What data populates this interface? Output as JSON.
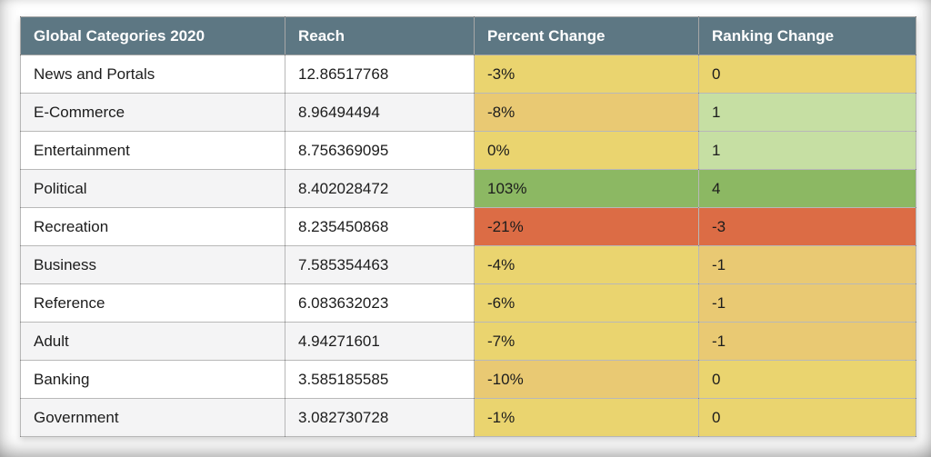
{
  "colors": {
    "header_bg": "#5D7783",
    "header_text": "#FFFFFF",
    "row_alt_bg": "#F4F4F5",
    "yellow": "#EAD46F",
    "orange_yellow": "#E9C973",
    "light_green": "#C6DFA3",
    "green": "#8CB863",
    "red_orange": "#DC6C45"
  },
  "table": {
    "headers": [
      "Global Categories 2020",
      "Reach",
      "Percent Change",
      "Ranking Change"
    ],
    "rows": [
      {
        "category": "News and Portals",
        "reach": "12.86517768",
        "percent_change": "-3%",
        "percent_bg": "#EAD46F",
        "ranking_change": "0",
        "ranking_bg": "#EAD46F"
      },
      {
        "category": "E-Commerce",
        "reach": "8.96494494",
        "percent_change": "-8%",
        "percent_bg": "#E9C973",
        "ranking_change": "1",
        "ranking_bg": "#C6DFA3"
      },
      {
        "category": "Entertainment",
        "reach": "8.756369095",
        "percent_change": "0%",
        "percent_bg": "#EAD46F",
        "ranking_change": "1",
        "ranking_bg": "#C6DFA3"
      },
      {
        "category": "Political",
        "reach": "8.402028472",
        "percent_change": "103%",
        "percent_bg": "#8CB863",
        "ranking_change": "4",
        "ranking_bg": "#8CB863"
      },
      {
        "category": "Recreation",
        "reach": "8.235450868",
        "percent_change": "-21%",
        "percent_bg": "#DC6C45",
        "ranking_change": "-3",
        "ranking_bg": "#DC6C45"
      },
      {
        "category": "Business",
        "reach": "7.585354463",
        "percent_change": "-4%",
        "percent_bg": "#EAD46F",
        "ranking_change": "-1",
        "ranking_bg": "#E9C973"
      },
      {
        "category": "Reference",
        "reach": "6.083632023",
        "percent_change": "-6%",
        "percent_bg": "#EAD46F",
        "ranking_change": "-1",
        "ranking_bg": "#E9C973"
      },
      {
        "category": "Adult",
        "reach": "4.94271601",
        "percent_change": "-7%",
        "percent_bg": "#EAD46F",
        "ranking_change": "-1",
        "ranking_bg": "#E9C973"
      },
      {
        "category": "Banking",
        "reach": "3.585185585",
        "percent_change": "-10%",
        "percent_bg": "#E9C973",
        "ranking_change": "0",
        "ranking_bg": "#EAD46F"
      },
      {
        "category": "Government",
        "reach": "3.082730728",
        "percent_change": "-1%",
        "percent_bg": "#EAD46F",
        "ranking_change": "0",
        "ranking_bg": "#EAD46F"
      }
    ]
  },
  "chart_data": {
    "type": "table",
    "title": "Global Categories 2020",
    "columns": [
      "Global Categories 2020",
      "Reach",
      "Percent Change",
      "Ranking Change"
    ],
    "rows": [
      [
        "News and Portals",
        12.86517768,
        "-3%",
        0
      ],
      [
        "E-Commerce",
        8.96494494,
        "-8%",
        1
      ],
      [
        "Entertainment",
        8.756369095,
        "0%",
        1
      ],
      [
        "Political",
        8.402028472,
        "103%",
        4
      ],
      [
        "Recreation",
        8.235450868,
        "-21%",
        -3
      ],
      [
        "Business",
        7.585354463,
        "-4%",
        -1
      ],
      [
        "Reference",
        6.083632023,
        "-6%",
        -1
      ],
      [
        "Adult",
        4.94271601,
        "-7%",
        -1
      ],
      [
        "Banking",
        3.585185585,
        "-10%",
        0
      ],
      [
        "Government",
        3.082730728,
        "-1%",
        0
      ]
    ],
    "notes": "Percent Change and Ranking Change cells are color-scaled: red-orange for worst values, yellow/orange-yellow near zero or slightly negative, light green and green for positive gains."
  }
}
